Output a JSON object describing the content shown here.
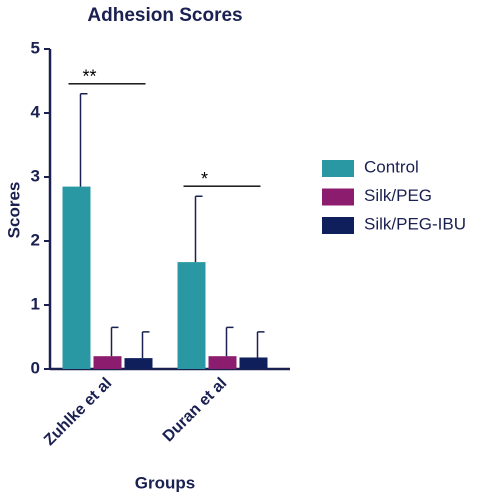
{
  "chart_data": {
    "type": "bar",
    "title": "Adhesion Scores",
    "x_label": "Groups",
    "y_label": "Scores",
    "categories": [
      "Zuhlke et al",
      "Duran et al"
    ],
    "series": [
      {
        "name": "Control",
        "color": "#2a98a3",
        "values": [
          2.85,
          1.67
        ],
        "errors": [
          1.45,
          1.03
        ]
      },
      {
        "name": "Silk/PEG",
        "color": "#8c1c6e",
        "values": [
          0.2,
          0.2
        ],
        "errors": [
          0.45,
          0.45
        ]
      },
      {
        "name": "Silk/PEG-IBU",
        "color": "#0e1f5c",
        "values": [
          0.17,
          0.18
        ],
        "errors": [
          0.41,
          0.4
        ]
      }
    ],
    "annotations": [
      "**",
      "*"
    ],
    "ylim": [
      0,
      5
    ],
    "yticks": [
      0,
      1,
      2,
      3,
      4,
      5
    ]
  }
}
